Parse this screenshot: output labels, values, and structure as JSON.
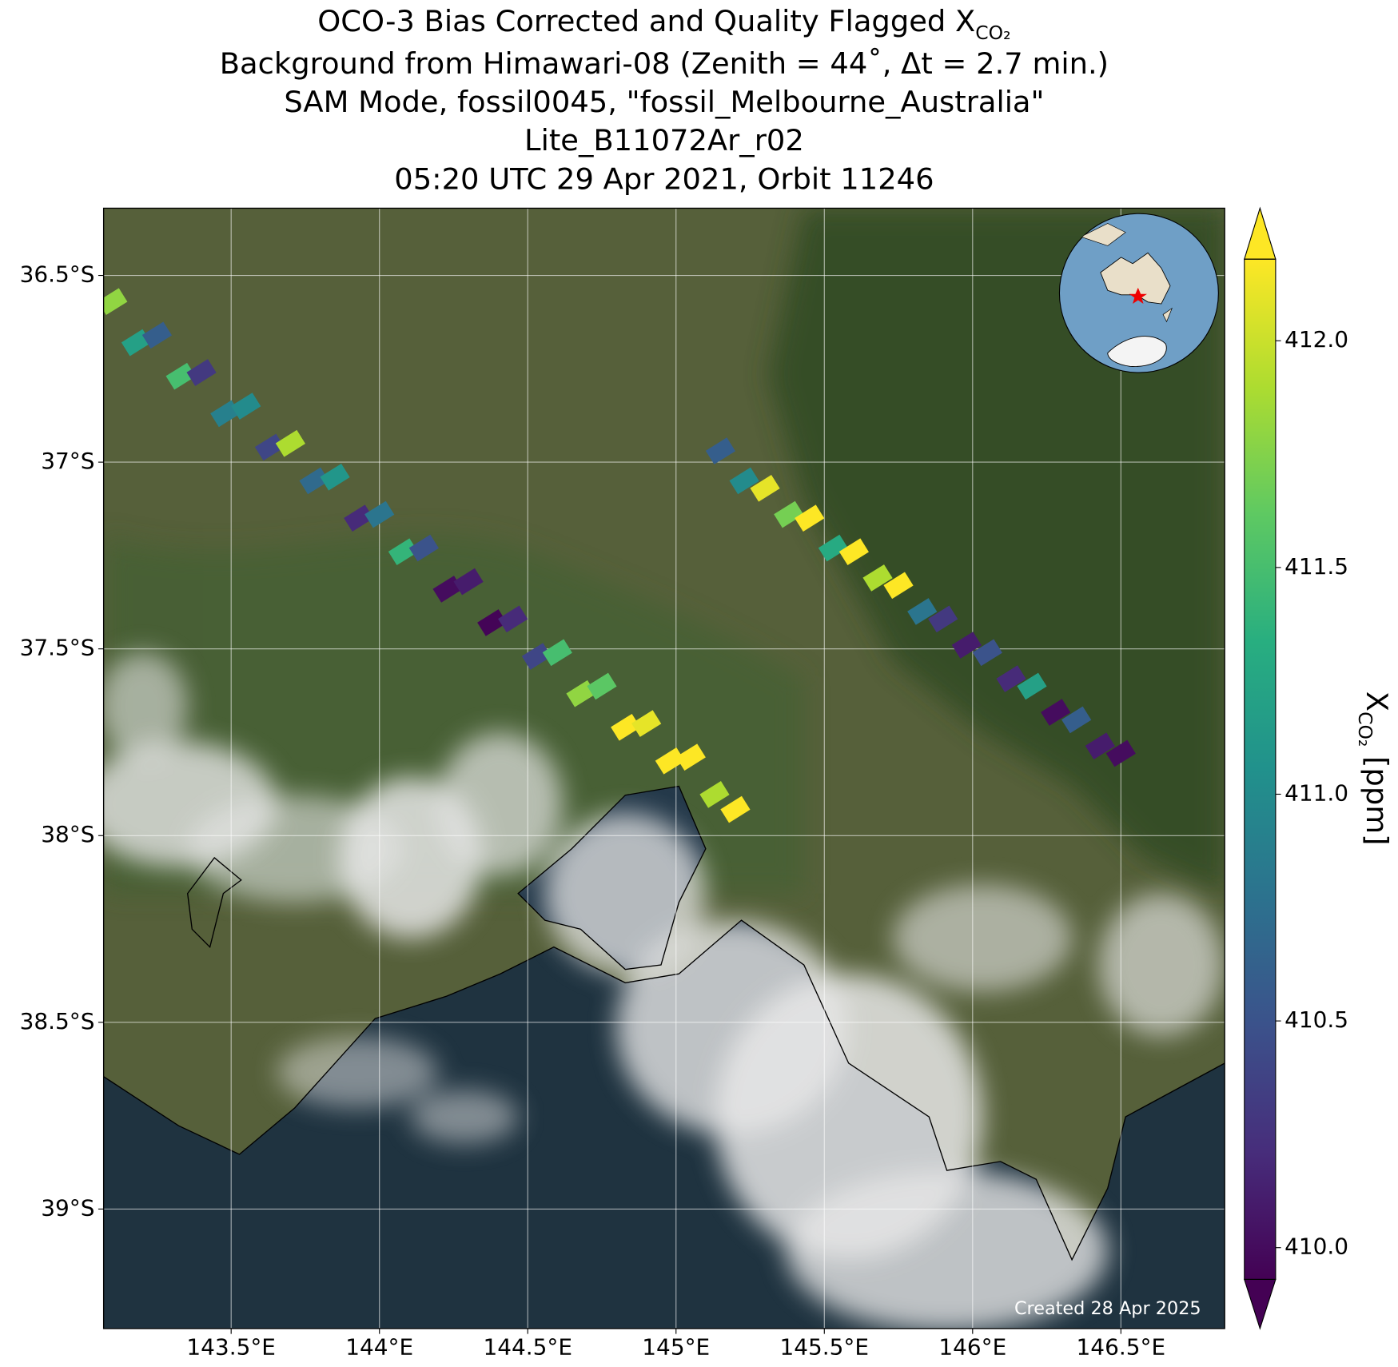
{
  "chart_data": {
    "type": "map",
    "title": {
      "main": "OCO-3 Bias Corrected and Quality Flagged X",
      "subscript": "CO₂",
      "lines": [
        "Background from Himawari-08 (Zenith = 44˚, Δt =  2.7 min.)",
        "SAM Mode, fossil0045, \"fossil_Melbourne_Australia\"",
        "Lite_B11072Ar_r02",
        "05:20 UTC 29 Apr 2021, Orbit 11246"
      ]
    },
    "x": [
      143.1,
      143.18,
      143.25,
      143.33,
      143.4,
      143.48,
      143.55,
      143.63,
      143.7,
      143.78,
      143.85,
      143.93,
      144.0,
      144.08,
      144.15,
      144.23,
      144.3,
      144.38,
      144.45,
      144.53,
      144.6,
      144.68,
      144.75,
      144.83,
      144.9,
      144.98,
      145.05,
      145.13,
      145.2,
      145.15,
      145.23,
      145.3,
      145.38,
      145.45,
      145.53,
      145.6,
      145.68,
      145.75,
      145.83,
      145.9,
      145.98,
      146.05,
      146.13,
      146.2,
      146.28,
      146.35,
      146.43,
      146.5
    ],
    "y": [
      -36.57,
      -36.68,
      -36.66,
      -36.77,
      -36.76,
      -36.87,
      -36.85,
      -36.96,
      -36.95,
      -37.05,
      -37.04,
      -37.15,
      -37.14,
      -37.24,
      -37.23,
      -37.34,
      -37.32,
      -37.43,
      -37.42,
      -37.52,
      -37.51,
      -37.62,
      -37.6,
      -37.71,
      -37.7,
      -37.8,
      -37.79,
      -37.89,
      -37.93,
      -36.97,
      -37.05,
      -37.07,
      -37.14,
      -37.15,
      -37.23,
      -37.24,
      -37.31,
      -37.33,
      -37.4,
      -37.42,
      -37.49,
      -37.51,
      -37.58,
      -37.6,
      -37.67,
      -37.69,
      -37.76,
      -37.78
    ],
    "values": [
      411.8,
      411.2,
      410.6,
      411.5,
      410.3,
      410.9,
      411.0,
      410.4,
      411.9,
      410.7,
      411.1,
      410.2,
      410.8,
      411.4,
      410.5,
      410.0,
      410.1,
      409.95,
      410.2,
      410.4,
      411.5,
      411.8,
      411.6,
      412.2,
      412.1,
      412.2,
      412.2,
      411.9,
      412.2,
      410.6,
      411.0,
      412.1,
      411.7,
      412.2,
      411.3,
      412.2,
      411.9,
      412.2,
      410.8,
      410.3,
      410.1,
      410.5,
      410.2,
      411.2,
      410.0,
      410.6,
      410.1,
      410.0
    ],
    "xlim": [
      143.07,
      146.85
    ],
    "ylim": [
      -39.32,
      -36.32
    ],
    "xticks": [
      {
        "value": 143.5,
        "label": "143.5°E"
      },
      {
        "value": 144,
        "label": "144°E"
      },
      {
        "value": 144.5,
        "label": "144.5°E"
      },
      {
        "value": 145,
        "label": "145°E"
      },
      {
        "value": 145.5,
        "label": "145.5°E"
      },
      {
        "value": 146,
        "label": "146°E"
      },
      {
        "value": 146.5,
        "label": "146.5°E"
      }
    ],
    "yticks": [
      {
        "value": -36.5,
        "label": "36.5°S"
      },
      {
        "value": -37,
        "label": "37°S"
      },
      {
        "value": -37.5,
        "label": "37.5°S"
      },
      {
        "value": -38,
        "label": "38°S"
      },
      {
        "value": -38.5,
        "label": "38.5°S"
      },
      {
        "value": -39,
        "label": "39°S"
      }
    ],
    "grid": true,
    "colorbar": {
      "clim": [
        409.93,
        412.18
      ],
      "ticks": [
        {
          "value": 410,
          "label": "410.0"
        },
        {
          "value": 410.5,
          "label": "410.5"
        },
        {
          "value": 411,
          "label": "411.0"
        },
        {
          "value": 411.5,
          "label": "411.5"
        },
        {
          "value": 412,
          "label": "412.0"
        }
      ],
      "label": {
        "main": "X",
        "subscript": "CO₂",
        "suffix": " [ppm]"
      },
      "colormap": [
        "#440154",
        "#472d7b",
        "#3b528b",
        "#2c728e",
        "#21918c",
        "#28ae80",
        "#5ec962",
        "#addc30",
        "#fde725"
      ]
    },
    "credit": "Created 28 Apr 2025"
  }
}
